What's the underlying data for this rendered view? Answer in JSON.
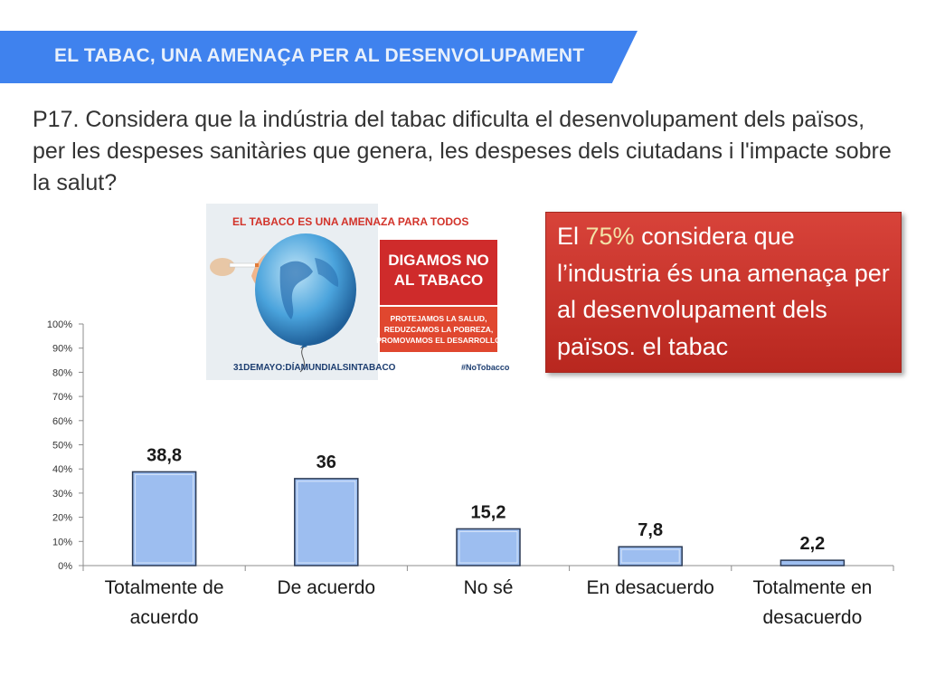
{
  "header": {
    "title": "EL TABAC, UNA AMENAÇA PER AL DESENVOLUPAMENT"
  },
  "question": {
    "text": "P17. Considera que la indústria del tabac dificulta el desenvolupament dels països, per les despeses sanitàries que genera, les despeses dels ciutadans i l'impacte sobre la salut?"
  },
  "poster": {
    "headline": "EL TABACO ES UNA AMENAZA PARA TODOS",
    "box_title_1": "DIGAMOS NO",
    "box_title_2": "AL TABACO",
    "box_sub_1": "PROTEJAMOS LA SALUD,",
    "box_sub_2": "REDUZCAMOS LA POBREZA,",
    "box_sub_3": "PROMOVAMOS EL DESARROLLO",
    "footer_date": "31DEMAYO:DÍAMUNDIALSINTABACO",
    "hashtag": "#NoTobacco"
  },
  "callout": {
    "prefix": "El ",
    "highlight": "75%",
    "rest": " considera que l’industria és una amenaça per al desenvolupament dels països. el tabac"
  },
  "colors": {
    "banner": "#3f82ee",
    "bar": "#9dbef0",
    "bar_border": "#2b3a55",
    "callout": "#c73127"
  },
  "chart_data": {
    "type": "bar",
    "title": "",
    "xlabel": "",
    "ylabel": "",
    "ylim": [
      0,
      100
    ],
    "yticks": [
      "0%",
      "10%",
      "20%",
      "30%",
      "40%",
      "50%",
      "60%",
      "70%",
      "80%",
      "90%",
      "100%"
    ],
    "categories": [
      [
        "Totalmente de",
        "acuerdo"
      ],
      [
        "De acuerdo"
      ],
      [
        "No sé"
      ],
      [
        "En desacuerdo"
      ],
      [
        "Totalmente en",
        "desacuerdo"
      ]
    ],
    "values": [
      38.8,
      36,
      15.2,
      7.8,
      2.2
    ],
    "data_labels": [
      "38,8",
      "36",
      "15,2",
      "7,8",
      "2,2"
    ]
  }
}
